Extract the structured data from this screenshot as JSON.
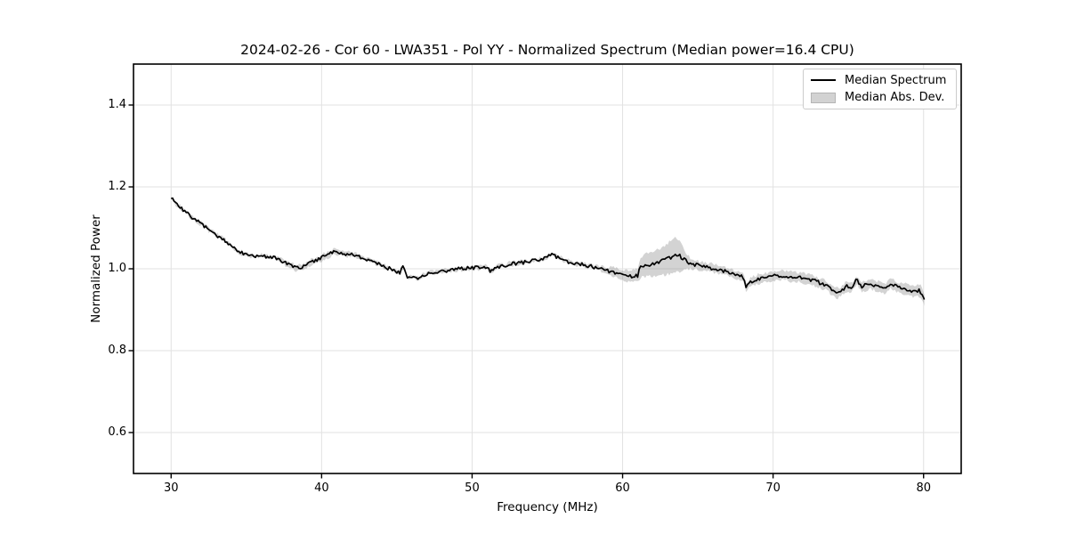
{
  "chart_data": {
    "type": "line",
    "title": "2024-02-26 - Cor 60 - LWA351 - Pol YY - Normalized Spectrum (Median power=16.4 CPU)",
    "xlabel": "Frequency (MHz)",
    "ylabel": "Normalized Power",
    "xlim": [
      27.5,
      82.5
    ],
    "ylim": [
      0.5,
      1.5
    ],
    "grid": true,
    "xticks": {
      "values": [
        30,
        40,
        50,
        60,
        70,
        80
      ],
      "labels": [
        "30",
        "40",
        "50",
        "60",
        "70",
        "80"
      ]
    },
    "yticks": {
      "values": [
        0.6,
        0.8,
        1.0,
        1.2,
        1.4
      ],
      "labels": [
        "0.6",
        "0.8",
        "1.0",
        "1.2",
        "1.4"
      ]
    },
    "legend": {
      "position": "upper-right",
      "entries": [
        {
          "label": "Median Spectrum",
          "type": "line",
          "color": "#000000"
        },
        {
          "label": "Median Abs. Dev.",
          "type": "band",
          "color": "#d2d2d2"
        }
      ]
    },
    "colors": {
      "line": "#000000",
      "band": "#808080",
      "band_opacity": 0.35,
      "grid": "#e2e2e2",
      "spine": "#000000"
    },
    "noise_amplitude": 0.0045,
    "sample_step_mhz": 0.1,
    "series": [
      {
        "name": "Median Spectrum",
        "x": [
          30,
          30.3,
          30.6,
          31,
          31.3,
          31.6,
          32,
          32.4,
          32.8,
          33.2,
          33.6,
          34,
          34.4,
          34.8,
          35.2,
          35.6,
          36,
          36.4,
          36.8,
          37.2,
          37.6,
          38,
          38.4,
          38.8,
          39.2,
          39.6,
          40,
          40.4,
          40.8,
          41.2,
          41.6,
          42,
          42.4,
          42.8,
          43.2,
          43.6,
          44,
          44.4,
          44.8,
          45.2,
          45.45,
          45.7,
          46.1,
          46.5,
          46.8,
          47.2,
          47.6,
          48,
          48.5,
          49,
          49.5,
          50,
          50.5,
          51,
          51.25,
          51.5,
          52,
          52.5,
          53,
          53.5,
          54,
          54.5,
          55,
          55.35,
          55.7,
          56.1,
          56.5,
          57,
          57.5,
          58,
          58.5,
          59,
          59.4,
          59.8,
          60.2,
          60.6,
          61,
          61.15,
          61.5,
          62,
          62.5,
          63,
          63.5,
          63.8,
          64.1,
          64.5,
          65,
          65.5,
          66,
          66.5,
          67,
          67.5,
          68,
          68.2,
          68.5,
          69,
          69.5,
          70,
          70.5,
          71,
          71.5,
          72,
          72.5,
          73,
          73.5,
          74,
          74.25,
          74.6,
          74.9,
          75.2,
          75.55,
          75.9,
          76.3,
          76.7,
          77.1,
          77.5,
          77.85,
          78.2,
          78.6,
          79,
          79.4,
          79.7,
          79.95,
          80.05
        ],
        "median": [
          1.176,
          1.16,
          1.15,
          1.137,
          1.128,
          1.12,
          1.11,
          1.098,
          1.088,
          1.078,
          1.068,
          1.055,
          1.045,
          1.037,
          1.032,
          1.03,
          1.031,
          1.029,
          1.027,
          1.022,
          1.014,
          1.006,
          1.002,
          1.006,
          1.014,
          1.021,
          1.027,
          1.034,
          1.041,
          1.039,
          1.036,
          1.034,
          1.032,
          1.026,
          1.02,
          1.014,
          1.009,
          1.002,
          0.996,
          0.991,
          1.007,
          0.982,
          0.977,
          0.976,
          0.986,
          0.989,
          0.99,
          0.993,
          0.996,
          0.999,
          1.001,
          1.002,
          1.003,
          1.004,
          0.991,
          1.003,
          1.007,
          1.011,
          1.014,
          1.016,
          1.019,
          1.023,
          1.029,
          1.035,
          1.028,
          1.021,
          1.016,
          1.012,
          1.009,
          1.005,
          1.0,
          0.995,
          0.991,
          0.988,
          0.984,
          0.981,
          0.983,
          1.003,
          1.008,
          1.012,
          1.017,
          1.024,
          1.033,
          1.031,
          1.022,
          1.013,
          1.009,
          1.005,
          1.001,
          0.996,
          0.992,
          0.987,
          0.981,
          0.954,
          0.969,
          0.975,
          0.979,
          0.982,
          0.984,
          0.982,
          0.98,
          0.977,
          0.973,
          0.967,
          0.96,
          0.947,
          0.939,
          0.948,
          0.957,
          0.952,
          0.974,
          0.957,
          0.961,
          0.961,
          0.955,
          0.953,
          0.966,
          0.956,
          0.951,
          0.948,
          0.944,
          0.947,
          0.938,
          0.924
        ],
        "mad": [
          0.004,
          0.004,
          0.004,
          0.004,
          0.004,
          0.004,
          0.004,
          0.004,
          0.004,
          0.004,
          0.004,
          0.004,
          0.004,
          0.004,
          0.004,
          0.004,
          0.004,
          0.004,
          0.004,
          0.005,
          0.006,
          0.007,
          0.007,
          0.007,
          0.007,
          0.007,
          0.007,
          0.007,
          0.007,
          0.006,
          0.006,
          0.005,
          0.004,
          0.004,
          0.004,
          0.004,
          0.004,
          0.004,
          0.004,
          0.004,
          0.004,
          0.004,
          0.004,
          0.004,
          0.004,
          0.004,
          0.004,
          0.004,
          0.004,
          0.004,
          0.004,
          0.004,
          0.004,
          0.004,
          0.004,
          0.004,
          0.004,
          0.004,
          0.004,
          0.004,
          0.004,
          0.004,
          0.004,
          0.004,
          0.004,
          0.004,
          0.004,
          0.004,
          0.004,
          0.004,
          0.006,
          0.008,
          0.012,
          0.013,
          0.013,
          0.014,
          0.015,
          0.024,
          0.028,
          0.03,
          0.033,
          0.038,
          0.043,
          0.04,
          0.024,
          0.014,
          0.011,
          0.01,
          0.01,
          0.01,
          0.01,
          0.01,
          0.01,
          0.01,
          0.01,
          0.011,
          0.011,
          0.011,
          0.011,
          0.011,
          0.011,
          0.011,
          0.011,
          0.011,
          0.012,
          0.012,
          0.012,
          0.012,
          0.012,
          0.012,
          0.012,
          0.012,
          0.012,
          0.012,
          0.012,
          0.012,
          0.013,
          0.013,
          0.013,
          0.013,
          0.014,
          0.014,
          0.015,
          0.015
        ]
      }
    ]
  }
}
